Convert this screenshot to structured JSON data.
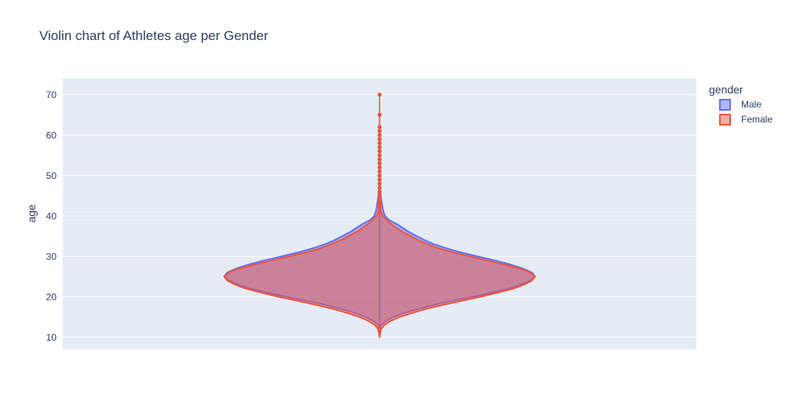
{
  "chart_data": {
    "type": "violin",
    "title": "Violin chart of Athletes age per Gender",
    "xlabel": "",
    "ylabel": "age",
    "ylim": [
      7,
      74
    ],
    "yticks": [
      10,
      20,
      30,
      40,
      50,
      60,
      70
    ],
    "grid": true,
    "legend": {
      "title": "gender",
      "placement": "top-right"
    },
    "series": [
      {
        "name": "Male",
        "color": "#636efa",
        "fill": "rgba(99,110,250,0.5)",
        "stroke": "#636efa",
        "range": [
          12,
          65
        ],
        "peak_age": 25,
        "outliers": [
          46,
          47,
          48,
          49,
          50,
          51,
          52,
          53,
          54,
          55,
          56,
          57,
          58,
          59,
          60,
          61,
          62,
          65
        ],
        "profile": [
          [
            12,
            0.0
          ],
          [
            13,
            0.01
          ],
          [
            14,
            0.04
          ],
          [
            15,
            0.09
          ],
          [
            16,
            0.16
          ],
          [
            17,
            0.25
          ],
          [
            18,
            0.35
          ],
          [
            19,
            0.47
          ],
          [
            20,
            0.6
          ],
          [
            21,
            0.72
          ],
          [
            22,
            0.83
          ],
          [
            23,
            0.91
          ],
          [
            24,
            0.97
          ],
          [
            25,
            1.0
          ],
          [
            26,
            0.98
          ],
          [
            27,
            0.92
          ],
          [
            28,
            0.84
          ],
          [
            29,
            0.74
          ],
          [
            30,
            0.63
          ],
          [
            31,
            0.52
          ],
          [
            32,
            0.43
          ],
          [
            33,
            0.35
          ],
          [
            34,
            0.29
          ],
          [
            35,
            0.24
          ],
          [
            36,
            0.19
          ],
          [
            37,
            0.15
          ],
          [
            38,
            0.11
          ],
          [
            39,
            0.06
          ],
          [
            40,
            0.035
          ],
          [
            41,
            0.025
          ],
          [
            42,
            0.019
          ],
          [
            43,
            0.015
          ],
          [
            44,
            0.011
          ],
          [
            45,
            0.008
          ],
          [
            46,
            0.005
          ],
          [
            48,
            0.002
          ],
          [
            50,
            0.0
          ]
        ]
      },
      {
        "name": "Female",
        "color": "#ef553b",
        "fill": "rgba(239,85,59,0.5)",
        "stroke": "#ef553b",
        "range": [
          12,
          70
        ],
        "peak_age": 25,
        "outliers": [
          41,
          42,
          43,
          44,
          45,
          46,
          47,
          48,
          49,
          50,
          51,
          52,
          53,
          54,
          55,
          56,
          57,
          58,
          59,
          60,
          61,
          62,
          65,
          70
        ],
        "profile": [
          [
            10,
            0.0
          ],
          [
            11,
            0.004
          ],
          [
            12,
            0.01
          ],
          [
            13,
            0.03
          ],
          [
            14,
            0.07
          ],
          [
            15,
            0.13
          ],
          [
            16,
            0.21
          ],
          [
            17,
            0.3
          ],
          [
            18,
            0.41
          ],
          [
            19,
            0.53
          ],
          [
            20,
            0.65
          ],
          [
            21,
            0.76
          ],
          [
            22,
            0.86
          ],
          [
            23,
            0.93
          ],
          [
            24,
            0.98
          ],
          [
            25,
            1.0
          ],
          [
            26,
            0.97
          ],
          [
            27,
            0.9
          ],
          [
            28,
            0.8
          ],
          [
            29,
            0.69
          ],
          [
            30,
            0.58
          ],
          [
            31,
            0.47
          ],
          [
            32,
            0.38
          ],
          [
            33,
            0.31
          ],
          [
            34,
            0.25
          ],
          [
            35,
            0.2
          ],
          [
            36,
            0.15
          ],
          [
            37,
            0.11
          ],
          [
            38,
            0.075
          ],
          [
            39,
            0.045
          ],
          [
            40,
            0.02
          ],
          [
            41,
            0.009
          ],
          [
            42,
            0.006
          ],
          [
            44,
            0.003
          ],
          [
            46,
            0.0015
          ],
          [
            50,
            0.0
          ]
        ]
      }
    ]
  }
}
